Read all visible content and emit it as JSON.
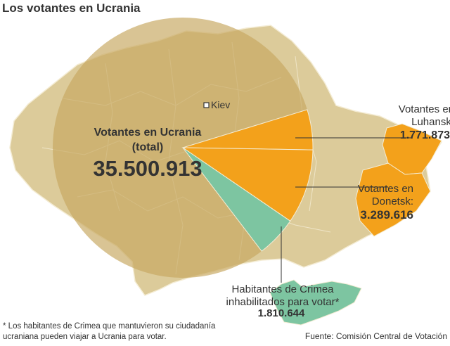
{
  "title": "Los votantes en Ucrania",
  "city": "Kiev",
  "total": {
    "label_line1": "Votantes en Ucrania",
    "label_line2": "(total)",
    "value": "35.500.913"
  },
  "luhansk": {
    "label_line1": "Votantes en",
    "label_line2": "Luhansk:",
    "value": "1.771.873"
  },
  "donetsk": {
    "label_line1": "Votantes en",
    "label_line2": "Donetsk:",
    "value": "3.289.616"
  },
  "crimea": {
    "label_line1": "Habitantes de Crimea",
    "label_line2": "inhabilitados para votar*",
    "value": "1.810.644"
  },
  "footnote": "* Los habitantes de Crimea que mantuvieron su ciudadanía ucraniana pueden viajar a Ucrania para votar.",
  "source": "Fuente: Comisión Central de Votación",
  "colors": {
    "map_land": "#dccb9a",
    "circle": "#c7a862",
    "pro_russia_regions": "#f3a11b",
    "crimea": "#7dc5a1",
    "text": "#333333"
  },
  "chart_data": {
    "type": "pie",
    "total": 35500913,
    "slices": [
      {
        "name": "Luhansk",
        "value": 1771873
      },
      {
        "name": "Donetsk",
        "value": 3289616
      },
      {
        "name": "Crimea",
        "value": 1810644
      }
    ]
  }
}
